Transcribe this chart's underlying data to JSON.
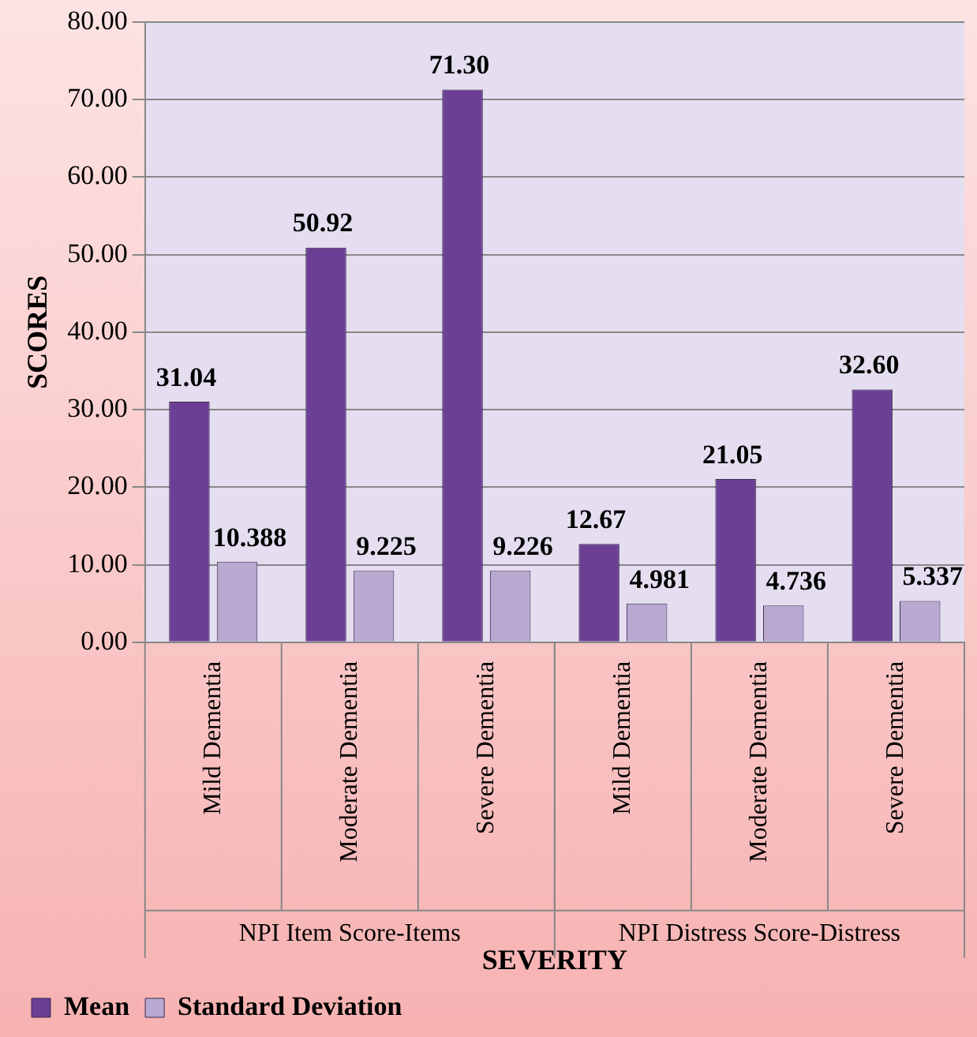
{
  "chart_data": {
    "type": "bar",
    "xlabel": "SEVERITY",
    "ylabel": "SCORES",
    "categories": [
      "Mild Dementia",
      "Moderate Dementia",
      "Severe Dementia",
      "Mild Dementia",
      "Moderate Dementia",
      "Severe Dementia"
    ],
    "series": [
      {
        "name": "Mean",
        "color": "#6b3f93",
        "values": [
          31.04,
          50.92,
          71.3,
          12.67,
          21.05,
          32.6
        ],
        "value_labels": [
          "31.04",
          "50.92",
          "71.30",
          "12.67",
          "21.05",
          "32.60"
        ]
      },
      {
        "name": "Standard Deviation",
        "color": "#b9a8d0",
        "values": [
          10.388,
          9.225,
          9.226,
          4.981,
          4.736,
          5.337
        ],
        "value_labels": [
          "10.388",
          "9.225",
          "9.226",
          "4.981",
          "4.736",
          "5.337"
        ]
      }
    ],
    "annotations": [
      "NPI Item Score-Items",
      "NPI Distress Score-Distress"
    ],
    "ylim": [
      0,
      80
    ],
    "yticks": [
      {
        "value": 0,
        "label": "0.00"
      },
      {
        "value": 10,
        "label": "10.00"
      },
      {
        "value": 20,
        "label": "20.00"
      },
      {
        "value": 30,
        "label": "30.00"
      },
      {
        "value": 40,
        "label": "40.00"
      },
      {
        "value": 50,
        "label": "50.00"
      },
      {
        "value": 60,
        "label": "60.00"
      },
      {
        "value": 70,
        "label": "70.00"
      },
      {
        "value": 80,
        "label": "80.00"
      }
    ],
    "grid": "y",
    "legend": "bottom left"
  }
}
